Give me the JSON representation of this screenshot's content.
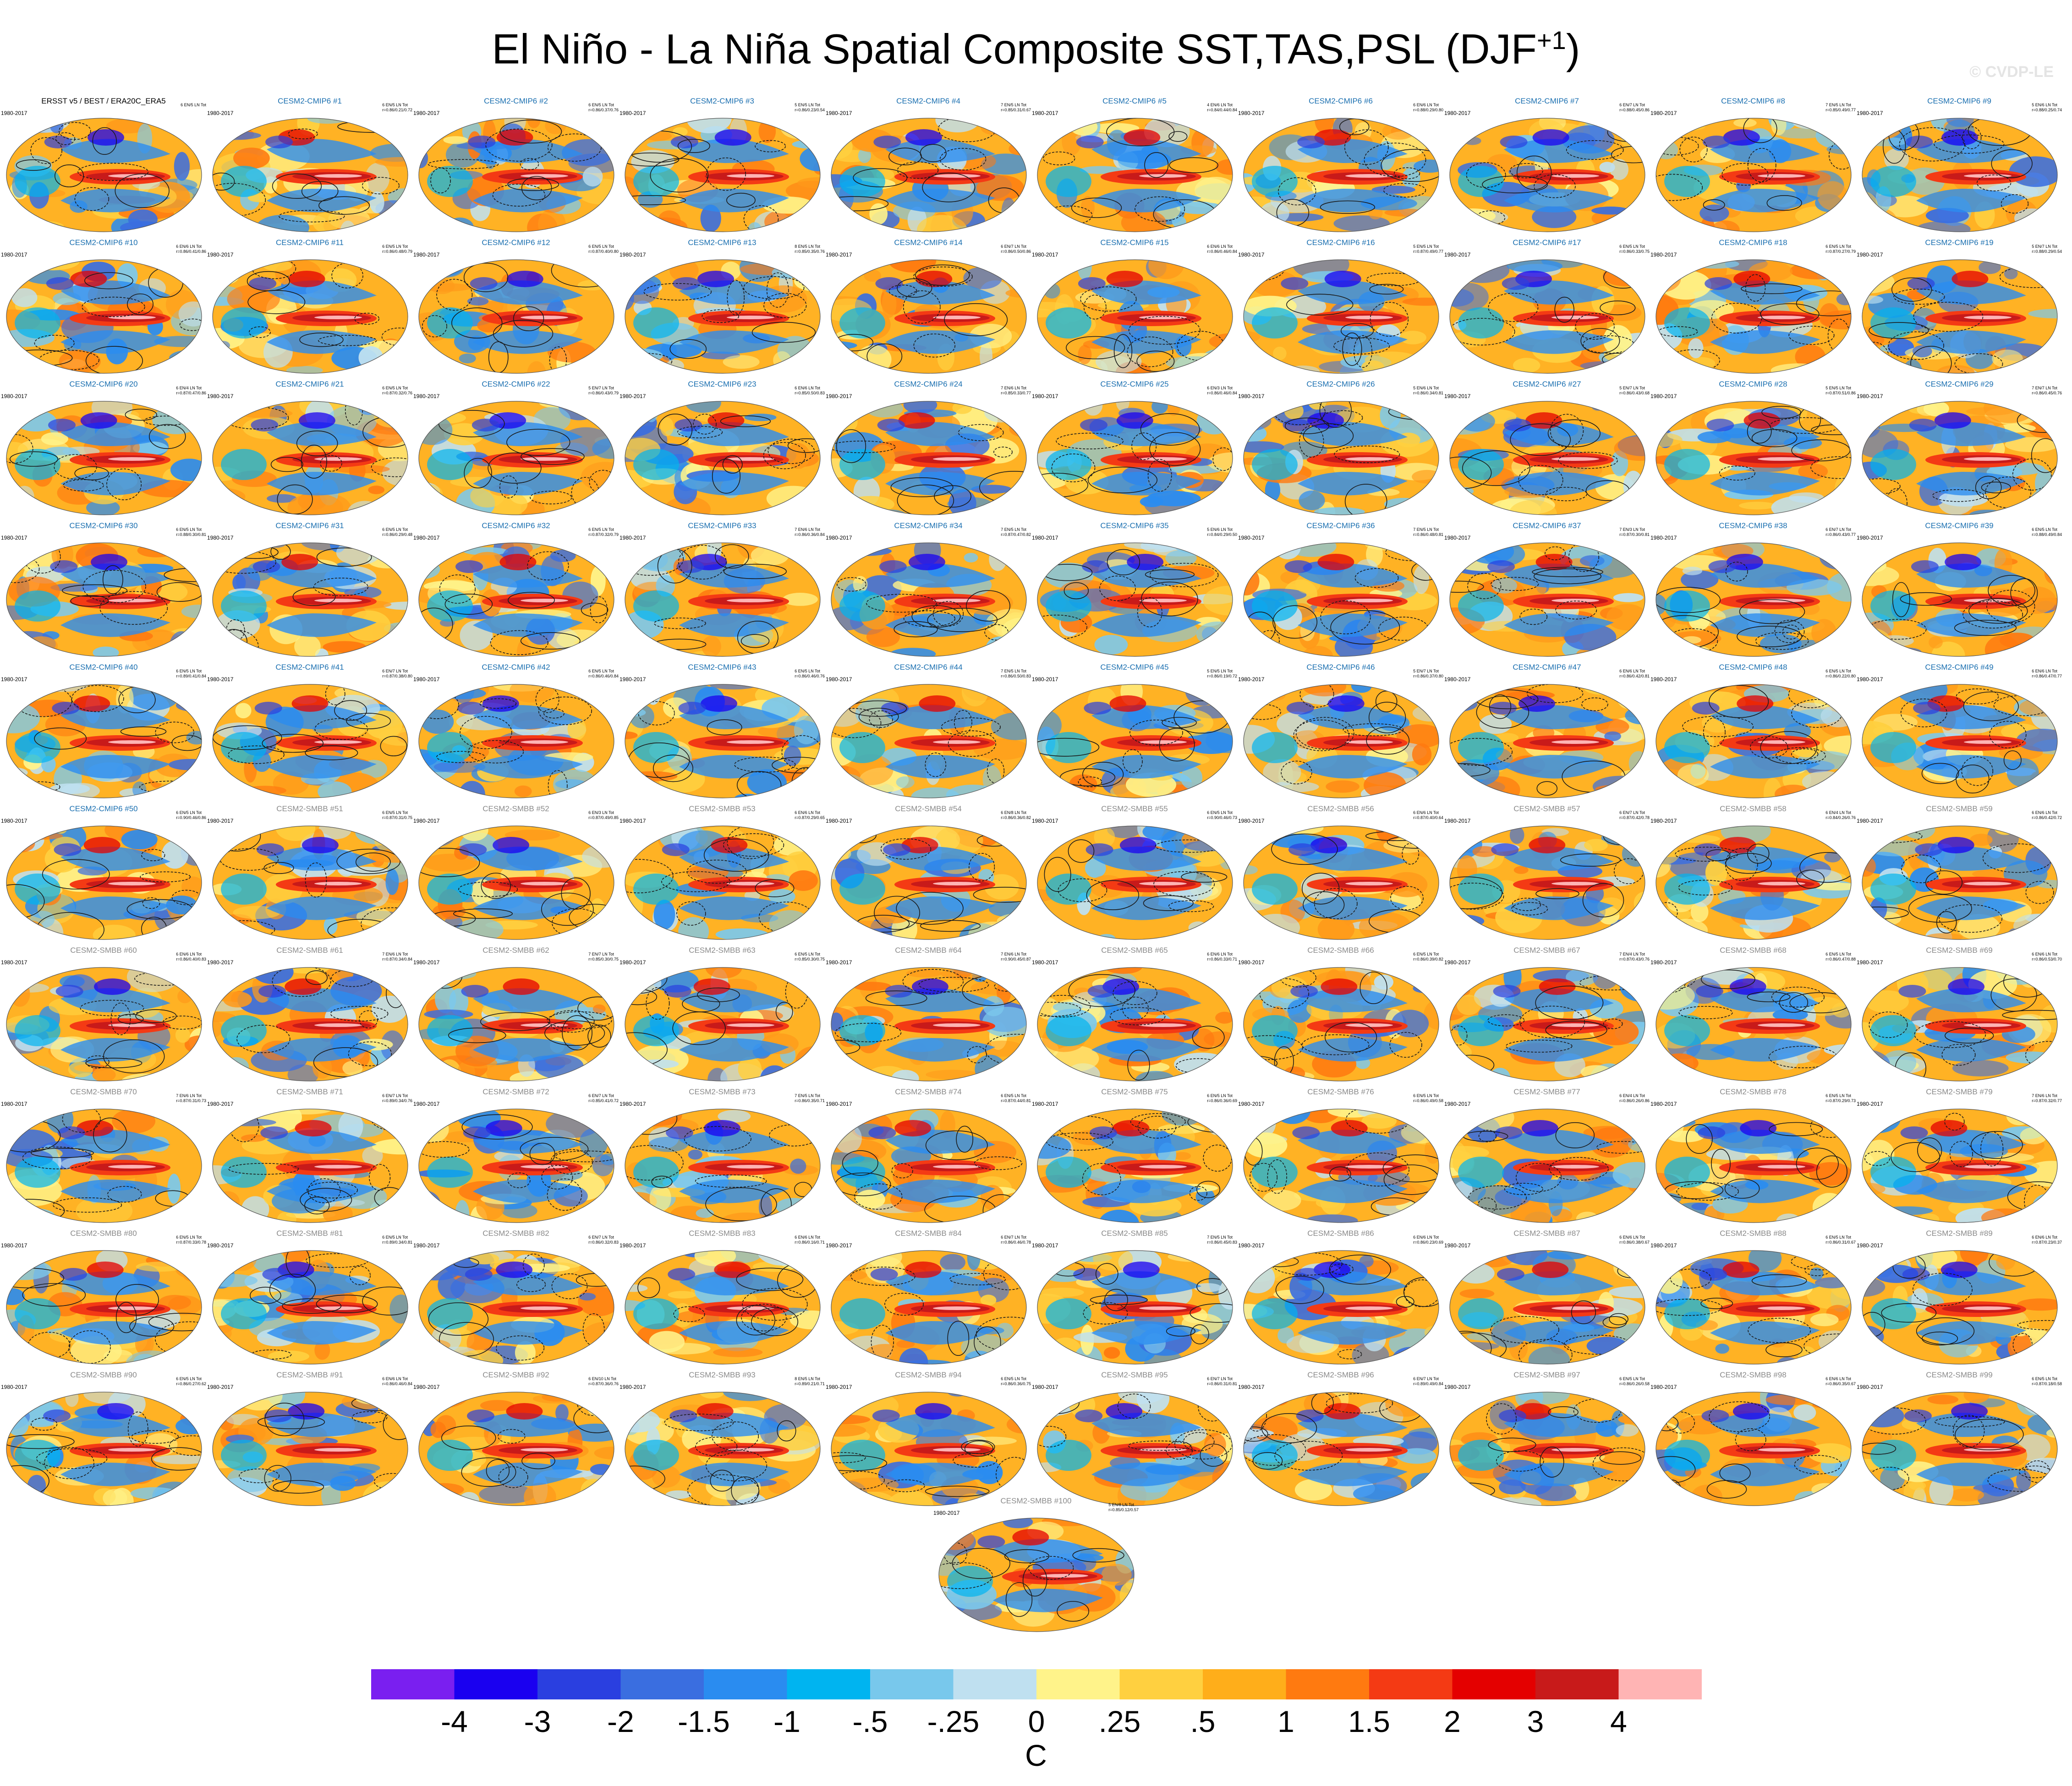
{
  "title": "El Niño - La Niña Spatial Composite SST,TAS,PSL (DJF",
  "title_superscript": "+1",
  "title_close": ")",
  "watermark": "© CVDP-LE",
  "chart_data": {
    "type": "heatmap",
    "title": "El Niño - La Niña Spatial Composite SST,TAS,PSL (DJF+1)",
    "period": "1980-2017",
    "observations": {
      "label": "ERSST v5 / BEST / ERA20C_ERA5",
      "stats": "6 EN/5 LN Tot"
    },
    "members": [
      {
        "name": "CESM2-CMIP6 #1",
        "stats": "6 EN/5 LN Tot\nr=0.86/0.21/0.72"
      },
      {
        "name": "CESM2-CMIP6 #2",
        "stats": "6 EN/5 LN Tot\nr=0.86/0.37/0.76"
      },
      {
        "name": "CESM2-CMIP6 #3",
        "stats": "5 EN/5 LN Tot\nr=0.86/0.23/0.54"
      },
      {
        "name": "CESM2-CMIP6 #4",
        "stats": "7 EN/5 LN Tot\nr=0.85/0.31/0.67"
      },
      {
        "name": "CESM2-CMIP6 #5",
        "stats": "4 EN/6 LN Tot\nr=0.84/0.44/0.84"
      },
      {
        "name": "CESM2-CMIP6 #6",
        "stats": "6 EN/6 LN Tot\nr=0.88/0.29/0.80"
      },
      {
        "name": "CESM2-CMIP6 #7",
        "stats": "6 EN/7 LN Tot\nr=0.88/0.45/0.86"
      },
      {
        "name": "CESM2-CMIP6 #8",
        "stats": "7 EN/5 LN Tot\nr=0.85/0.49/0.77"
      },
      {
        "name": "CESM2-CMIP6 #9",
        "stats": "5 EN/6 LN Tot\nr=0.88/0.25/0.74"
      },
      {
        "name": "CESM2-CMIP6 #10",
        "stats": "6 EN/6 LN Tot\nr=0.86/0.41/0.86"
      },
      {
        "name": "CESM2-CMIP6 #11",
        "stats": "6 EN/5 LN Tot\nr=0.86/0.48/0.79"
      },
      {
        "name": "CESM2-CMIP6 #12",
        "stats": "6 EN/5 LN Tot\nr=0.87/0.40/0.80"
      },
      {
        "name": "CESM2-CMIP6 #13",
        "stats": "8 EN/5 LN Tot\nr=0.85/0.35/0.76"
      },
      {
        "name": "CESM2-CMIP6 #14",
        "stats": "6 EN/7 LN Tot\nr=0.86/0.50/0.86"
      },
      {
        "name": "CESM2-CMIP6 #15",
        "stats": "6 EN/6 LN Tot\nr=0.86/0.46/0.84"
      },
      {
        "name": "CESM2-CMIP6 #16",
        "stats": "5 EN/5 LN Tot\nr=0.87/0.49/0.77"
      },
      {
        "name": "CESM2-CMIP6 #17",
        "stats": "6 EN/5 LN Tot\nr=0.86/0.33/0.75"
      },
      {
        "name": "CESM2-CMIP6 #18",
        "stats": "6 EN/5 LN Tot\nr=0.87/0.27/0.79"
      },
      {
        "name": "CESM2-CMIP6 #19",
        "stats": "5 EN/7 LN Tot\nr=0.88/0.29/0.54"
      },
      {
        "name": "CESM2-CMIP6 #20",
        "stats": "6 EN/4 LN Tot\nr=0.87/0.47/0.86"
      },
      {
        "name": "CESM2-CMIP6 #21",
        "stats": "6 EN/5 LN Tot\nr=0.87/0.32/0.76"
      },
      {
        "name": "CESM2-CMIP6 #22",
        "stats": "5 EN/7 LN Tot\nr=0.86/0.43/0.79"
      },
      {
        "name": "CESM2-CMIP6 #23",
        "stats": "6 EN/6 LN Tot\nr=0.85/0.50/0.83"
      },
      {
        "name": "CESM2-CMIP6 #24",
        "stats": "7 EN/6 LN Tot\nr=0.85/0.33/0.77"
      },
      {
        "name": "CESM2-CMIP6 #25",
        "stats": "6 EN/3 LN Tot\nr=0.86/0.46/0.84"
      },
      {
        "name": "CESM2-CMIP6 #26",
        "stats": "5 EN/6 LN Tot\nr=0.86/0.34/0.81"
      },
      {
        "name": "CESM2-CMIP6 #27",
        "stats": "5 EN/7 LN Tot\nr=0.86/0.43/0.68"
      },
      {
        "name": "CESM2-CMIP6 #28",
        "stats": "5 EN/5 LN Tot\nr=0.87/0.51/0.86"
      },
      {
        "name": "CESM2-CMIP6 #29",
        "stats": "7 EN/7 LN Tot\nr=0.86/0.45/0.76"
      },
      {
        "name": "CESM2-CMIP6 #30",
        "stats": "6 EN/5 LN Tot\nr=0.88/0.30/0.81"
      },
      {
        "name": "CESM2-CMIP6 #31",
        "stats": "6 EN/5 LN Tot\nr=0.86/0.29/0.48"
      },
      {
        "name": "CESM2-CMIP6 #32",
        "stats": "6 EN/5 LN Tot\nr=0.87/0.32/0.79"
      },
      {
        "name": "CESM2-CMIP6 #33",
        "stats": "7 EN/6 LN Tot\nr=0.86/0.36/0.84"
      },
      {
        "name": "CESM2-CMIP6 #34",
        "stats": "7 EN/5 LN Tot\nr=0.87/0.47/0.82"
      },
      {
        "name": "CESM2-CMIP6 #35",
        "stats": "5 EN/6 LN Tot\nr=0.84/0.29/0.50"
      },
      {
        "name": "CESM2-CMIP6 #36",
        "stats": "7 EN/5 LN Tot\nr=0.86/0.48/0.81"
      },
      {
        "name": "CESM2-CMIP6 #37",
        "stats": "7 EN/3 LN Tot\nr=0.87/0.30/0.81"
      },
      {
        "name": "CESM2-CMIP6 #38",
        "stats": "6 EN/7 LN Tot\nr=0.86/0.43/0.77"
      },
      {
        "name": "CESM2-CMIP6 #39",
        "stats": "6 EN/5 LN Tot\nr=0.88/0.49/0.84"
      },
      {
        "name": "CESM2-CMIP6 #40",
        "stats": "6 EN/5 LN Tot\nr=0.89/0.41/0.84"
      },
      {
        "name": "CESM2-CMIP6 #41",
        "stats": "6 EN/7 LN Tot\nr=0.87/0.38/0.80"
      },
      {
        "name": "CESM2-CMIP6 #42",
        "stats": "6 EN/5 LN Tot\nr=0.86/0.46/0.84"
      },
      {
        "name": "CESM2-CMIP6 #43",
        "stats": "6 EN/5 LN Tot\nr=0.86/0.46/0.76"
      },
      {
        "name": "CESM2-CMIP6 #44",
        "stats": "7 EN/5 LN Tot\nr=0.86/0.50/0.83"
      },
      {
        "name": "CESM2-CMIP6 #45",
        "stats": "5 EN/5 LN Tot\nr=0.86/0.19/0.72"
      },
      {
        "name": "CESM2-CMIP6 #46",
        "stats": "5 EN/7 LN Tot\nr=0.86/0.37/0.80"
      },
      {
        "name": "CESM2-CMIP6 #47",
        "stats": "6 EN/6 LN Tot\nr=0.86/0.42/0.81"
      },
      {
        "name": "CESM2-CMIP6 #48",
        "stats": "6 EN/5 LN Tot\nr=0.86/0.22/0.80"
      },
      {
        "name": "CESM2-CMIP6 #49",
        "stats": "6 EN/6 LN Tot\nr=0.86/0.47/0.77"
      },
      {
        "name": "CESM2-CMIP6 #50",
        "stats": "6 EN/5 LN Tot\nr=0.90/0.46/0.86"
      },
      {
        "name": "CESM2-SMBB #51",
        "stats": "6 EN/5 LN Tot\nr=0.87/0.31/0.75"
      },
      {
        "name": "CESM2-SMBB #52",
        "stats": "6 EN/3 LN Tot\nr=0.87/0.49/0.85"
      },
      {
        "name": "CESM2-SMBB #53",
        "stats": "6 EN/6 LN Tot\nr=0.87/0.29/0.65"
      },
      {
        "name": "CESM2-SMBB #54",
        "stats": "6 EN/8 LN Tot\nr=0.86/0.36/0.82"
      },
      {
        "name": "CESM2-SMBB #55",
        "stats": "6 EN/5 LN Tot\nr=0.90/0.46/0.73"
      },
      {
        "name": "CESM2-SMBB #56",
        "stats": "6 EN/6 LN Tot\nr=0.87/0.40/0.64"
      },
      {
        "name": "CESM2-SMBB #57",
        "stats": "6 EN/7 LN Tot\nr=0.87/0.42/0.78"
      },
      {
        "name": "CESM2-SMBB #58",
        "stats": "6 EN/4 LN Tot\nr=0.84/0.26/0.76"
      },
      {
        "name": "CESM2-SMBB #59",
        "stats": "6 EN/6 LN Tot\nr=0.86/0.42/0.72"
      },
      {
        "name": "CESM2-SMBB #60",
        "stats": "6 EN/6 LN Tot\nr=0.86/0.40/0.83"
      },
      {
        "name": "CESM2-SMBB #61",
        "stats": "7 EN/6 LN Tot\nr=0.87/0.34/0.84"
      },
      {
        "name": "CESM2-SMBB #62",
        "stats": "7 EN/7 LN Tot\nr=0.85/0.30/0.75"
      },
      {
        "name": "CESM2-SMBB #63",
        "stats": "6 EN/5 LN Tot\nr=0.85/0.30/0.75"
      },
      {
        "name": "CESM2-SMBB #64",
        "stats": "7 EN/6 LN Tot\nr=0.90/0.45/0.87"
      },
      {
        "name": "CESM2-SMBB #65",
        "stats": "6 EN/6 LN Tot\nr=0.86/0.33/0.71"
      },
      {
        "name": "CESM2-SMBB #66",
        "stats": "6 EN/5 LN Tot\nr=0.86/0.39/0.82"
      },
      {
        "name": "CESM2-SMBB #67",
        "stats": "7 EN/4 LN Tot\nr=0.87/0.43/0.76"
      },
      {
        "name": "CESM2-SMBB #68",
        "stats": "6 EN/5 LN Tot\nr=0.86/0.47/0.88"
      },
      {
        "name": "CESM2-SMBB #69",
        "stats": "6 EN/6 LN Tot\nr=0.86/0.53/0.70"
      },
      {
        "name": "CESM2-SMBB #70",
        "stats": "7 EN/6 LN Tot\nr=0.87/0.31/0.73"
      },
      {
        "name": "CESM2-SMBB #71",
        "stats": "6 EN/7 LN Tot\nr=0.89/0.34/0.76"
      },
      {
        "name": "CESM2-SMBB #72",
        "stats": "6 EN/7 LN Tot\nr=0.85/0.41/0.72"
      },
      {
        "name": "CESM2-SMBB #73",
        "stats": "7 EN/5 LN Tot\nr=0.86/0.35/0.71"
      },
      {
        "name": "CESM2-SMBB #74",
        "stats": "6 EN/5 LN Tot\nr=0.87/0.44/0.81"
      },
      {
        "name": "CESM2-SMBB #75",
        "stats": "6 EN/5 LN Tot\nr=0.86/0.36/0.69"
      },
      {
        "name": "CESM2-SMBB #76",
        "stats": "6 EN/5 LN Tot\nr=0.86/0.49/0.58"
      },
      {
        "name": "CESM2-SMBB #77",
        "stats": "6 EN/4 LN Tot\nr=0.86/0.26/0.86"
      },
      {
        "name": "CESM2-SMBB #78",
        "stats": "6 EN/5 LN Tot\nr=0.87/0.29/0.73"
      },
      {
        "name": "CESM2-SMBB #79",
        "stats": "7 EN/6 LN Tot\nr=0.87/0.32/0.77"
      },
      {
        "name": "CESM2-SMBB #80",
        "stats": "6 EN/5 LN Tot\nr=0.87/0.33/0.78"
      },
      {
        "name": "CESM2-SMBB #81",
        "stats": "6 EN/5 LN Tot\nr=0.89/0.34/0.81"
      },
      {
        "name": "CESM2-SMBB #82",
        "stats": "6 EN/7 LN Tot\nr=0.86/0.32/0.83"
      },
      {
        "name": "CESM2-SMBB #83",
        "stats": "6 EN/6 LN Tot\nr=0.86/0.16/0.71"
      },
      {
        "name": "CESM2-SMBB #84",
        "stats": "6 EN/7 LN Tot\nr=0.86/0.46/0.78"
      },
      {
        "name": "CESM2-SMBB #85",
        "stats": "7 EN/5 LN Tot\nr=0.86/0.45/0.83"
      },
      {
        "name": "CESM2-SMBB #86",
        "stats": "6 EN/6 LN Tot\nr=0.86/0.23/0.69"
      },
      {
        "name": "CESM2-SMBB #87",
        "stats": "6 EN/6 LN Tot\nr=0.86/0.38/0.67"
      },
      {
        "name": "CESM2-SMBB #88",
        "stats": "6 EN/5 LN Tot\nr=0.86/0.31/0.67"
      },
      {
        "name": "CESM2-SMBB #89",
        "stats": "6 EN/6 LN Tot\nr=0.87/0.23/0.37"
      },
      {
        "name": "CESM2-SMBB #90",
        "stats": "6 EN/5 LN Tot\nr=0.86/0.27/0.62"
      },
      {
        "name": "CESM2-SMBB #91",
        "stats": "6 EN/6 LN Tot\nr=0.86/0.46/0.84"
      },
      {
        "name": "CESM2-SMBB #92",
        "stats": "6 EN/10 LN Tot\nr=0.87/0.36/0.76"
      },
      {
        "name": "CESM2-SMBB #93",
        "stats": "8 EN/5 LN Tot\nr=0.89/0.21/0.71"
      },
      {
        "name": "CESM2-SMBB #94",
        "stats": "6 EN/5 LN Tot\nr=0.86/0.36/0.75"
      },
      {
        "name": "CESM2-SMBB #95",
        "stats": "6 EN/7 LN Tot\nr=0.86/0.31/0.81"
      },
      {
        "name": "CESM2-SMBB #96",
        "stats": "6 EN/7 LN Tot\nr=0.89/0.49/0.84"
      },
      {
        "name": "CESM2-SMBB #97",
        "stats": "6 EN/5 LN Tot\nr=0.86/0.26/0.58"
      },
      {
        "name": "CESM2-SMBB #98",
        "stats": "6 EN/6 LN Tot\nr=0.86/0.35/0.67"
      },
      {
        "name": "CESM2-SMBB #99",
        "stats": "6 EN/5 LN Tot\nr=0.87/0.18/0.58"
      },
      {
        "name": "CESM2-SMBB #100",
        "stats": "5 EN/8 LN Tot\nr=0.85/0.12/0.57"
      }
    ],
    "colorbar": {
      "labels": [
        "-4",
        "-3",
        "-2",
        "-1.5",
        "-1",
        "-.5",
        "-.25",
        "0",
        ".25",
        ".5",
        "1",
        "1.5",
        "2",
        "3",
        "4"
      ],
      "colors": [
        "#7a1ff0",
        "#1a00f0",
        "#2a3fe0",
        "#3a6ee0",
        "#2a8cf0",
        "#00b4f0",
        "#78c8ec",
        "#bfe0f0",
        "#fff38a",
        "#ffd040",
        "#ffae1a",
        "#ff7a10",
        "#f43a14",
        "#e40000",
        "#c81a1a",
        "#ffb4b4"
      ],
      "units": "C"
    }
  }
}
